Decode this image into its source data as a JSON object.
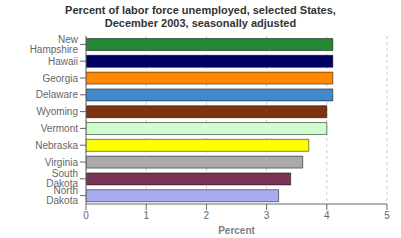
{
  "chart_data": {
    "type": "bar",
    "orientation": "horizontal",
    "title": "Percent of labor force unemployed, selected States,\nDecember 2003, seasonally adjusted",
    "categories": [
      "North Dakota",
      "South Dakota",
      "Virginia",
      "Nebraska",
      "Vermont",
      "Wyoming",
      "Delaware",
      "Georgia",
      "Hawaii",
      "New Hampshire"
    ],
    "values": [
      3.2,
      3.4,
      3.6,
      3.7,
      4.0,
      4.0,
      4.1,
      4.1,
      4.1,
      4.1
    ],
    "colors": [
      "#aaaaee",
      "#7b3355",
      "#aaaaaa",
      "#ffff00",
      "#ccffcc",
      "#7b3311",
      "#4488cc",
      "#ff8800",
      "#000066",
      "#228833"
    ],
    "xlabel": "Percent",
    "xlim": [
      0,
      5
    ],
    "xticks": [
      0,
      1,
      2,
      3,
      4,
      5
    ],
    "grid": true
  }
}
